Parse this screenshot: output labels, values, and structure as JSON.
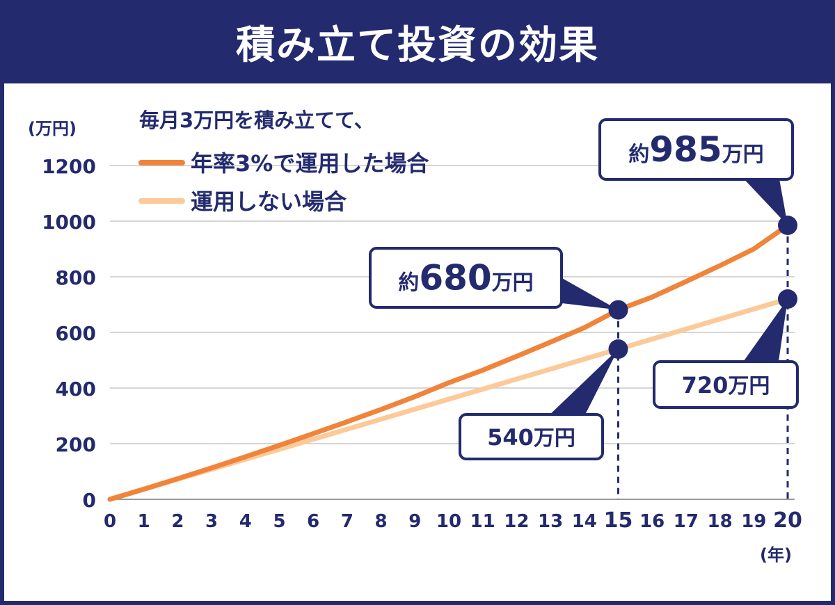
{
  "title": "積み立て投資の効果",
  "colors": {
    "navy": "#232a6e",
    "invest_line": "#f0843a",
    "no_invest_line": "#fcc999",
    "grid": "#c8c8c8"
  },
  "chart_data": {
    "type": "line",
    "ylabel": "(万円)",
    "xlabel": "(年)",
    "ylim": [
      0,
      1200
    ],
    "yticks": [
      0,
      200,
      400,
      600,
      800,
      1000,
      1200
    ],
    "xlim": [
      0,
      20
    ],
    "xticks": [
      0,
      1,
      2,
      3,
      4,
      5,
      6,
      7,
      8,
      9,
      10,
      11,
      12,
      13,
      14,
      15,
      16,
      17,
      18,
      19,
      20
    ],
    "grid": true,
    "legend": {
      "heading": "毎月3万円を積み立てて、",
      "placement": "top-left"
    },
    "series": [
      {
        "name": "年率3%で運用した場合",
        "color": "#f0843a",
        "x": [
          0,
          1,
          2,
          3,
          4,
          5,
          6,
          7,
          8,
          9,
          10,
          11,
          12,
          13,
          14,
          15,
          16,
          17,
          18,
          19,
          20
        ],
        "values": [
          0,
          36.5,
          74.2,
          113,
          153,
          194,
          236,
          279,
          323,
          369,
          419,
          464,
          514,
          565,
          617,
          681,
          727,
          783,
          840,
          900,
          985
        ]
      },
      {
        "name": "運用しない場合",
        "color": "#fcc999",
        "x": [
          0,
          1,
          2,
          3,
          4,
          5,
          6,
          7,
          8,
          9,
          10,
          11,
          12,
          13,
          14,
          15,
          16,
          17,
          18,
          19,
          20
        ],
        "values": [
          0,
          36,
          72,
          108,
          144,
          180,
          216,
          252,
          288,
          324,
          360,
          396,
          432,
          468,
          504,
          540,
          576,
          612,
          648,
          684,
          720
        ]
      }
    ],
    "annotations": [
      {
        "x": 15,
        "y": 681,
        "prefix": "約",
        "value": "680",
        "unit": "万円",
        "big": true,
        "dashed": true
      },
      {
        "x": 20,
        "y": 985,
        "prefix": "約",
        "value": "985",
        "unit": "万円",
        "big": true,
        "dashed": true
      },
      {
        "x": 15,
        "y": 540,
        "prefix": "",
        "value": "540",
        "unit": "万円",
        "big": false,
        "dashed": false
      },
      {
        "x": 20,
        "y": 720,
        "prefix": "",
        "value": "720",
        "unit": "万円",
        "big": false,
        "dashed": false
      }
    ]
  }
}
